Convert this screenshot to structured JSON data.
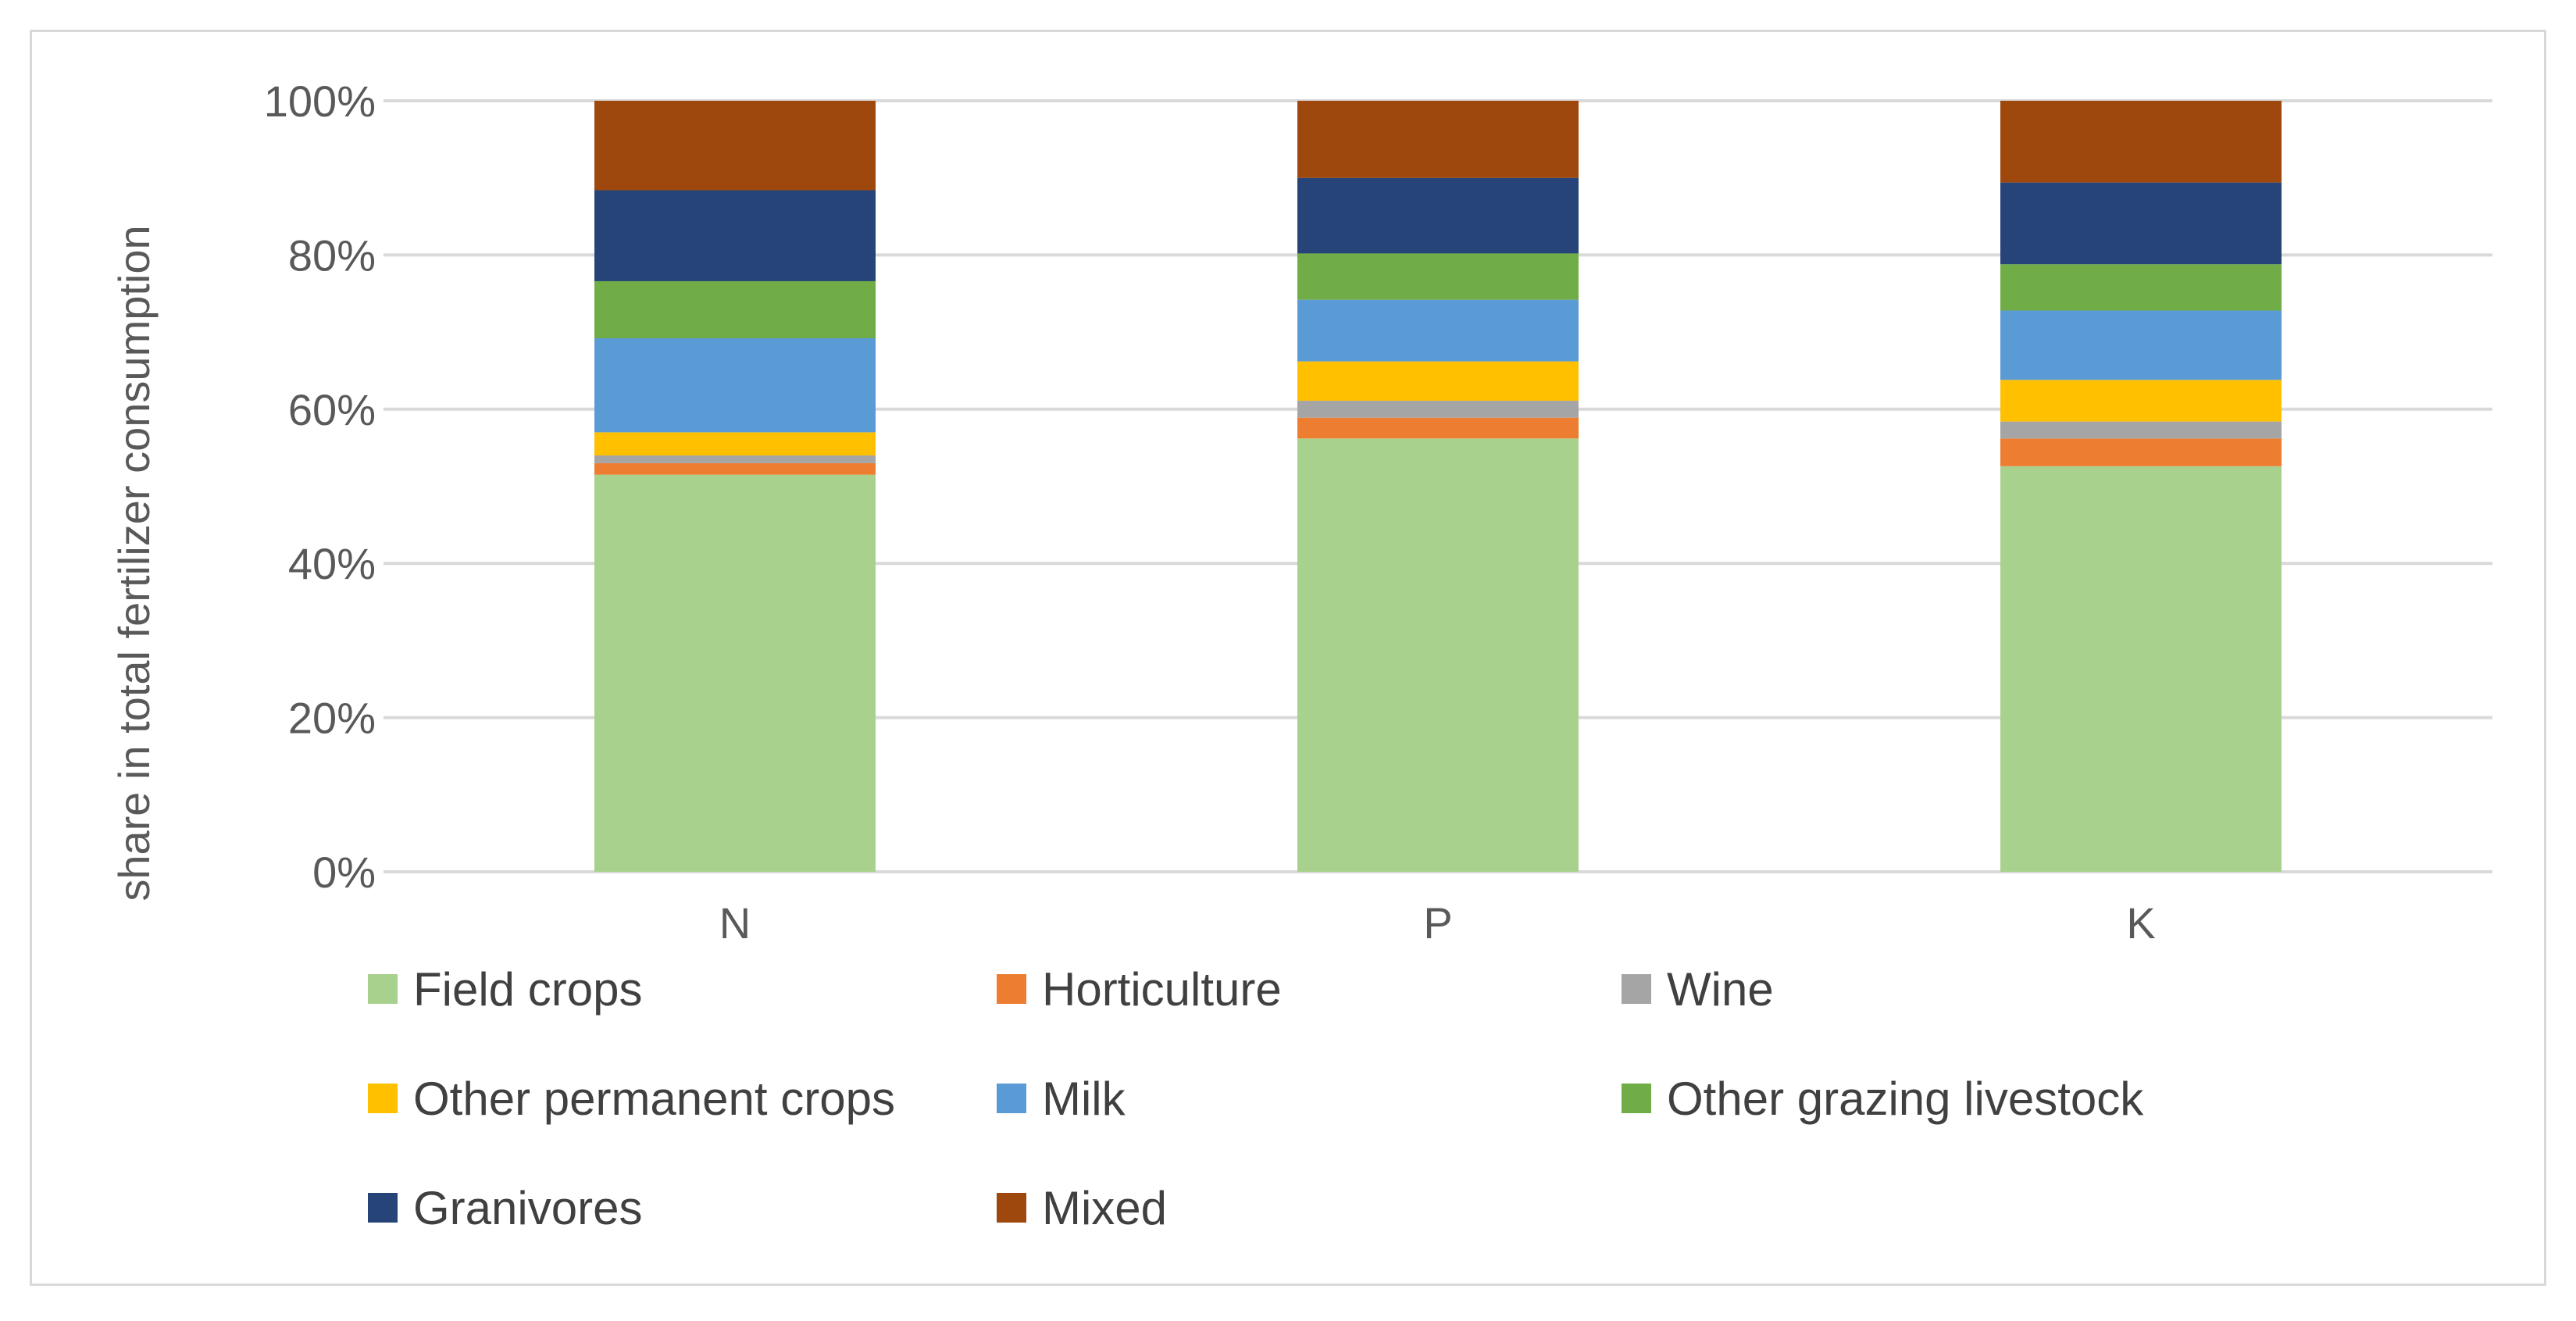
{
  "chart_data": {
    "type": "bar",
    "stacked": true,
    "percent": true,
    "title": "",
    "xlabel": "",
    "ylabel": "share in total fertilizer consumption",
    "ylim": [
      0,
      100
    ],
    "yticks": [
      "0%",
      "20%",
      "40%",
      "60%",
      "80%",
      "100%"
    ],
    "ytick_values": [
      0,
      20,
      40,
      60,
      80,
      100
    ],
    "grid": true,
    "legend_position": "bottom",
    "categories": [
      "N",
      "P",
      "K"
    ],
    "series": [
      {
        "name": "Field crops",
        "color": "#a9d18e",
        "values": [
          51.5,
          56.2,
          52.6
        ]
      },
      {
        "name": "Horticulture",
        "color": "#ed7d31",
        "values": [
          1.5,
          2.7,
          3.6
        ]
      },
      {
        "name": "Wine",
        "color": "#a5a5a5",
        "values": [
          1.0,
          2.2,
          2.2
        ]
      },
      {
        "name": "Other permanent crops",
        "color": "#ffc000",
        "values": [
          3.0,
          5.1,
          5.4
        ]
      },
      {
        "name": "Milk",
        "color": "#5b9bd5",
        "values": [
          12.2,
          8.0,
          9.0
        ]
      },
      {
        "name": "Other grazing livestock",
        "color": "#70ad47",
        "values": [
          7.4,
          6.0,
          6.0
        ]
      },
      {
        "name": "Granivores",
        "color": "#264478",
        "values": [
          11.8,
          9.8,
          10.6
        ]
      },
      {
        "name": "Mixed",
        "color": "#9e480e",
        "values": [
          11.6,
          10.0,
          10.6
        ]
      }
    ]
  }
}
